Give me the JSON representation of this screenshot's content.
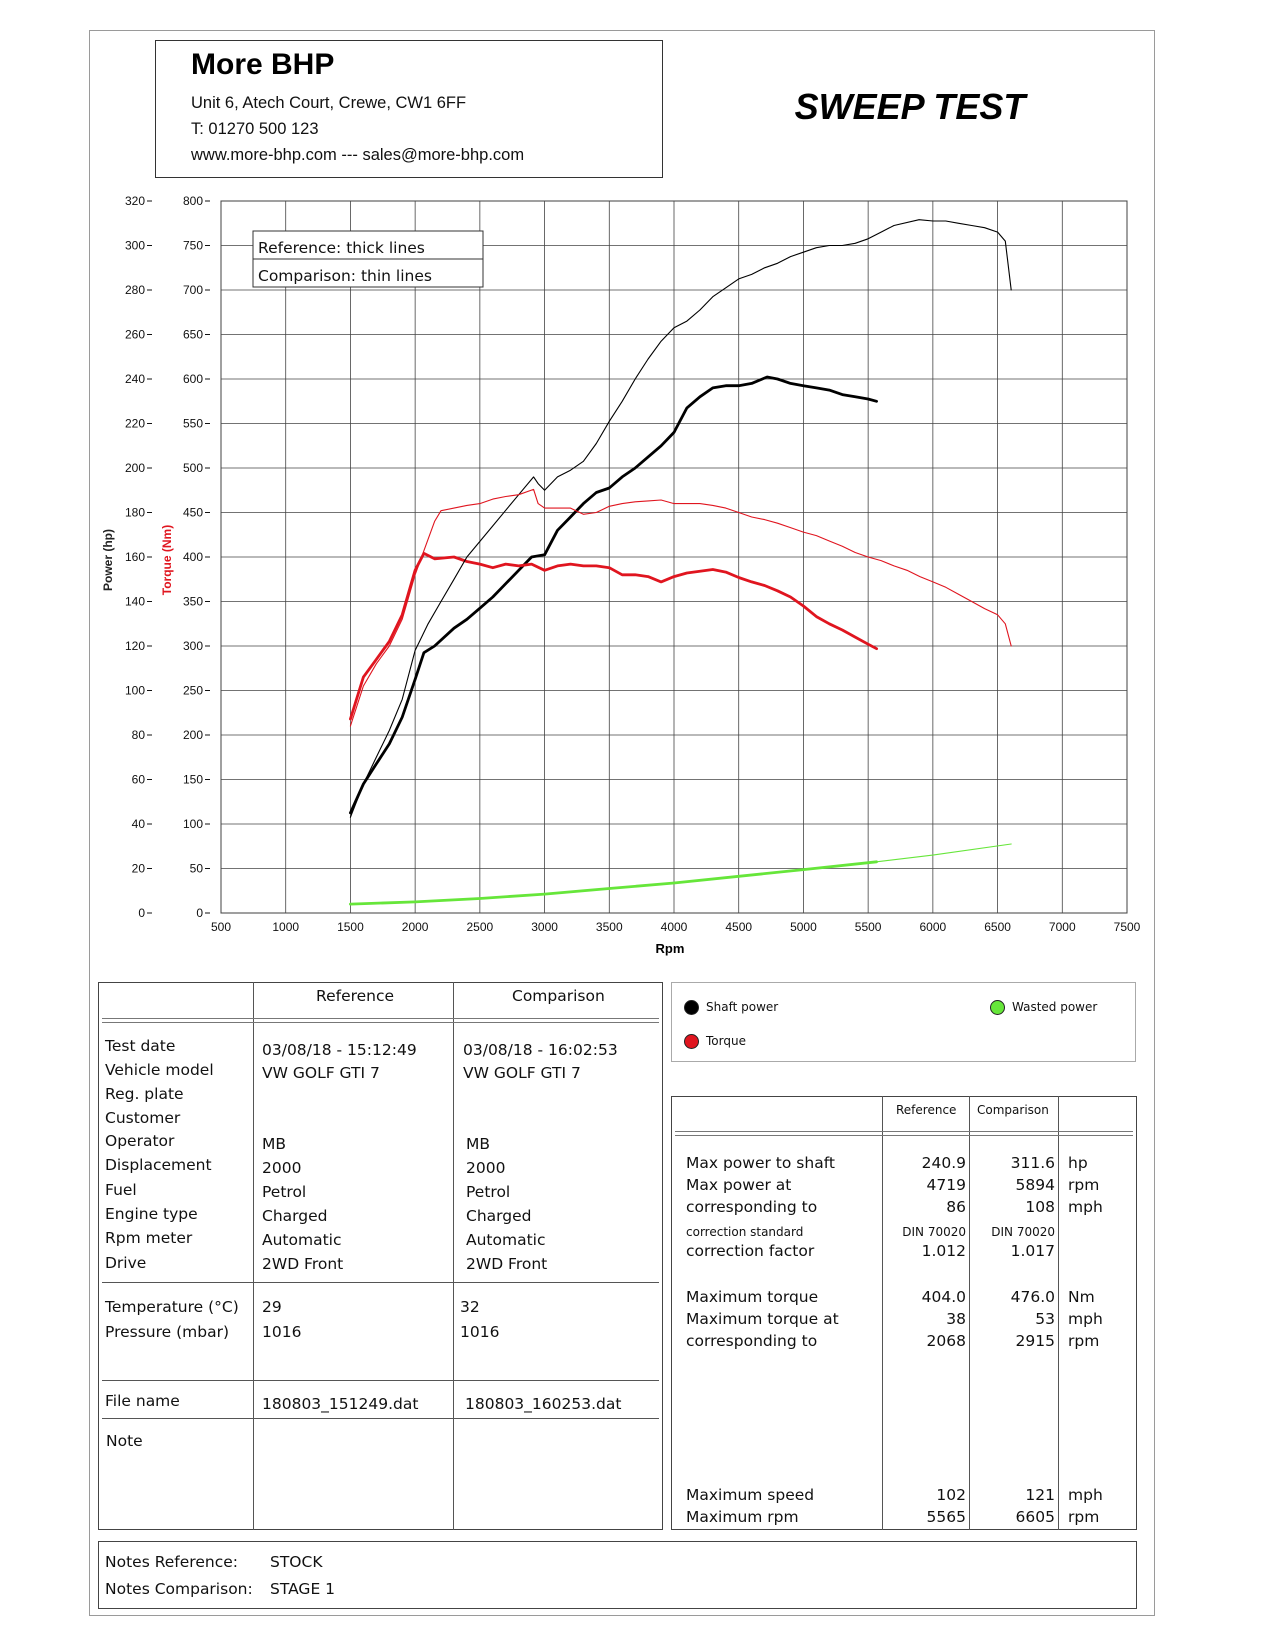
{
  "header": {
    "company": "More BHP",
    "address": "Unit 6, Atech Court, Crewe, CW1 6FF",
    "phone": "T: 01270 500 123",
    "web": "www.more-bhp.com --- sales@more-bhp.com",
    "title": "SWEEP TEST"
  },
  "legend_box": {
    "line1": "Reference: thick lines",
    "line2": "Comparison: thin lines"
  },
  "series_legend": {
    "shaft": "Shaft power",
    "torque": "Torque",
    "wasted": "Wasted power",
    "colors": {
      "shaft": "#000000",
      "torque": "#e0151f",
      "wasted": "#66e63a"
    }
  },
  "chart_data": {
    "type": "line",
    "xlabel": "Rpm",
    "ylabel_power": "Power (hp)",
    "ylabel_torque": "Torque (Nm)",
    "xlim": [
      500,
      7500
    ],
    "ylim_power": [
      0,
      320
    ],
    "ylim_torque": [
      0,
      800
    ],
    "x_ticks": [
      500,
      1000,
      1500,
      2000,
      2500,
      3000,
      3500,
      4000,
      4500,
      5000,
      5500,
      6000,
      6500,
      7000,
      7500
    ],
    "power_ticks": [
      0,
      20,
      40,
      60,
      80,
      100,
      120,
      140,
      160,
      180,
      200,
      220,
      240,
      260,
      280,
      300,
      320
    ],
    "torque_ticks": [
      0,
      50,
      100,
      150,
      200,
      250,
      300,
      350,
      400,
      450,
      500,
      550,
      600,
      650,
      700,
      750,
      800
    ],
    "grid": true,
    "series": [
      {
        "name": "Shaft power",
        "line": "thick",
        "color": "#000000",
        "axis": "power",
        "x": [
          1500,
          1600,
          1700,
          1800,
          1900,
          2000,
          2068,
          2150,
          2300,
          2400,
          2500,
          2600,
          2700,
          2800,
          2900,
          3000,
          3100,
          3200,
          3300,
          3400,
          3500,
          3600,
          3700,
          3800,
          3900,
          4000,
          4100,
          4200,
          4300,
          4400,
          4500,
          4600,
          4719,
          4800,
          4900,
          5000,
          5100,
          5200,
          5300,
          5400,
          5500,
          5565
        ],
        "y": [
          45,
          58,
          67,
          76,
          88,
          105,
          117,
          120,
          128,
          132,
          137,
          142,
          148,
          154,
          160,
          161,
          172,
          178,
          184,
          189,
          191,
          196,
          200,
          205,
          210,
          216,
          227,
          232,
          236,
          237,
          237,
          238,
          240.9,
          240,
          238,
          237,
          236,
          235,
          233,
          232,
          231,
          230
        ]
      },
      {
        "name": "Torque",
        "line": "thick",
        "color": "#e0151f",
        "axis": "torque",
        "x": [
          1500,
          1600,
          1700,
          1800,
          1900,
          2000,
          2068,
          2150,
          2300,
          2400,
          2500,
          2600,
          2700,
          2800,
          2900,
          3000,
          3100,
          3200,
          3300,
          3400,
          3500,
          3600,
          3700,
          3800,
          3900,
          4000,
          4100,
          4200,
          4300,
          4400,
          4500,
          4600,
          4700,
          4800,
          4900,
          5000,
          5100,
          5200,
          5300,
          5400,
          5500,
          5565
        ],
        "y": [
          218,
          265,
          285,
          305,
          335,
          385,
          404,
          398,
          400,
          395,
          392,
          388,
          392,
          390,
          392,
          385,
          390,
          392,
          390,
          390,
          388,
          380,
          380,
          378,
          372,
          378,
          382,
          384,
          386,
          383,
          377,
          372,
          368,
          362,
          355,
          345,
          333,
          325,
          318,
          310,
          302,
          297
        ]
      },
      {
        "name": "Shaft power",
        "line": "thin",
        "color": "#000000",
        "axis": "power",
        "x": [
          1500,
          1600,
          1700,
          1800,
          1900,
          2000,
          2100,
          2200,
          2300,
          2400,
          2500,
          2600,
          2700,
          2800,
          2915,
          2950,
          3000,
          3100,
          3200,
          3300,
          3400,
          3500,
          3600,
          3700,
          3800,
          3900,
          4000,
          4100,
          4200,
          4300,
          4400,
          4500,
          4600,
          4700,
          4800,
          4900,
          5000,
          5100,
          5200,
          5300,
          5400,
          5500,
          5600,
          5700,
          5894,
          6000,
          6100,
          6200,
          6300,
          6400,
          6500,
          6560,
          6605
        ],
        "y": [
          43,
          58,
          70,
          82,
          96,
          118,
          130,
          140,
          150,
          160,
          167,
          174,
          181,
          188,
          196,
          193,
          190,
          196,
          199,
          203,
          211,
          221,
          230,
          240,
          249,
          257,
          263,
          266,
          271,
          277,
          281,
          285,
          287,
          290,
          292,
          295,
          297,
          299,
          300,
          300,
          301,
          303,
          306,
          309,
          311.6,
          311,
          311,
          310,
          309,
          308,
          306,
          302,
          280
        ]
      },
      {
        "name": "Torque",
        "line": "thin",
        "color": "#e0151f",
        "axis": "torque",
        "x": [
          1500,
          1600,
          1700,
          1800,
          1900,
          2000,
          2100,
          2150,
          2200,
          2300,
          2400,
          2500,
          2600,
          2700,
          2800,
          2915,
          2950,
          3000,
          3100,
          3200,
          3300,
          3400,
          3500,
          3600,
          3700,
          3800,
          3900,
          4000,
          4100,
          4200,
          4300,
          4400,
          4500,
          4600,
          4700,
          4800,
          4900,
          5000,
          5100,
          5200,
          5300,
          5400,
          5500,
          5600,
          5700,
          5800,
          5900,
          6000,
          6100,
          6200,
          6300,
          6400,
          6500,
          6560,
          6605
        ],
        "y": [
          210,
          255,
          280,
          300,
          330,
          380,
          420,
          440,
          452,
          455,
          458,
          460,
          465,
          468,
          470,
          476,
          460,
          455,
          455,
          455,
          448,
          450,
          457,
          460,
          462,
          463,
          464,
          460,
          460,
          460,
          458,
          455,
          450,
          445,
          442,
          438,
          433,
          428,
          424,
          418,
          412,
          405,
          400,
          396,
          390,
          385,
          378,
          372,
          366,
          358,
          350,
          342,
          335,
          325,
          300
        ]
      },
      {
        "name": "Wasted power",
        "line": "thick",
        "color": "#66e63a",
        "axis": "power",
        "x": [
          1500,
          2000,
          2500,
          3000,
          3500,
          4000,
          4500,
          5000,
          5565
        ],
        "y": [
          4,
          5,
          6.5,
          8.5,
          11,
          13.5,
          16.5,
          19.5,
          23
        ]
      },
      {
        "name": "Wasted power",
        "line": "thin",
        "color": "#66e63a",
        "axis": "power",
        "x": [
          5565,
          6000,
          6605
        ],
        "y": [
          23,
          26,
          31
        ]
      }
    ]
  },
  "info_table": {
    "col_reference": "Reference",
    "col_comparison": "Comparison",
    "labels": [
      "Test date",
      "Vehicle model",
      "Reg. plate",
      "Customer",
      "Operator",
      "Displacement",
      "Fuel",
      "Engine type",
      "Rpm meter",
      "Drive"
    ],
    "reference": {
      "Test date": "03/08/18 - 15:12:49",
      "Vehicle model": "VW GOLF GTI 7",
      "Operator": "MB",
      "Displacement": "2000",
      "Fuel": "Petrol",
      "Engine type": "Charged",
      "Rpm meter": "Automatic",
      "Drive": "2WD Front"
    },
    "comparison": {
      "Test date": "03/08/18 - 16:02:53",
      "Vehicle model": "VW GOLF GTI 7",
      "Operator": "MB",
      "Displacement": "2000",
      "Fuel": "Petrol",
      "Engine type": "Charged",
      "Rpm meter": "Automatic",
      "Drive": "2WD Front"
    },
    "temp_label": "Temperature (°C)",
    "pressure_label": "Pressure (mbar)",
    "temp_ref": "29",
    "temp_cmp": "32",
    "pressure_ref": "1016",
    "pressure_cmp": "1016",
    "file_label": "File name",
    "file_ref": "180803_151249.dat",
    "file_cmp": "180803_160253.dat",
    "note_label": "Note"
  },
  "results_table": {
    "col_reference": "Reference",
    "col_comparison": "Comparison",
    "rows": [
      {
        "label": "Max power to shaft",
        "ref": "240.9",
        "cmp": "311.6",
        "unit": "hp"
      },
      {
        "label": "Max power at",
        "ref": "4719",
        "cmp": "5894",
        "unit": "rpm"
      },
      {
        "label": "corresponding to",
        "ref": "86",
        "cmp": "108",
        "unit": "mph"
      },
      {
        "label": "correction standard",
        "ref": "DIN 70020",
        "cmp": "DIN 70020",
        "unit": ""
      },
      {
        "label": "correction factor",
        "ref": "1.012",
        "cmp": "1.017",
        "unit": ""
      },
      {
        "label": "Maximum torque",
        "ref": "404.0",
        "cmp": "476.0",
        "unit": "Nm"
      },
      {
        "label": "Maximum torque at",
        "ref": "38",
        "cmp": "53",
        "unit": "mph"
      },
      {
        "label": "corresponding to",
        "ref": "2068",
        "cmp": "2915",
        "unit": "rpm"
      },
      {
        "label": "Maximum speed",
        "ref": "102",
        "cmp": "121",
        "unit": "mph"
      },
      {
        "label": "Maximum rpm",
        "ref": "5565",
        "cmp": "6605",
        "unit": "rpm"
      }
    ]
  },
  "notes": {
    "ref_label": "Notes Reference:",
    "ref_value": "STOCK",
    "cmp_label": "Notes Comparison:",
    "cmp_value": "STAGE 1"
  }
}
